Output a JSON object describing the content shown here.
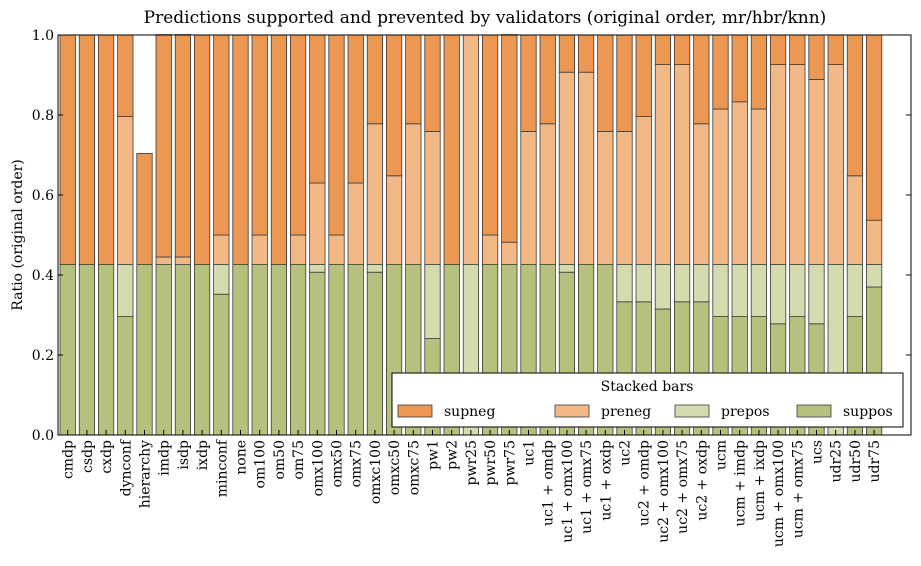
{
  "chart_data": {
    "type": "bar",
    "stacked": true,
    "title": "Predictions supported and prevented by validators (original order, mr/hbr/knn)",
    "xlabel": "",
    "ylabel": "Ratio (original order)",
    "ylim": [
      0,
      1.0
    ],
    "yticks": [
      "0.0",
      "0.2",
      "0.4",
      "0.6",
      "0.8",
      "1.0"
    ],
    "grid": false,
    "legend": {
      "title": "Stacked bars",
      "placement": "lower-right"
    },
    "categories": [
      "cmdp",
      "csdp",
      "cxdp",
      "dynconf",
      "hierarchy",
      "imdp",
      "isdp",
      "ixdp",
      "minconf",
      "none",
      "om100",
      "om50",
      "om75",
      "omx100",
      "omx50",
      "omx75",
      "omxc100",
      "omxc50",
      "omxc75",
      "pw1",
      "pw2",
      "pwr25",
      "pwr50",
      "pwr75",
      "uc1",
      "uc1 + omdp",
      "uc1 + omx100",
      "uc1 + omx75",
      "uc1 + oxdp",
      "uc2",
      "uc2 + omdp",
      "uc2 + omx100",
      "uc2 + omx75",
      "uc2 + oxdp",
      "ucm",
      "ucm + imdp",
      "ucm + ixdp",
      "ucm + omx100",
      "ucm + omx75",
      "ucs",
      "udr25",
      "udr50",
      "udr75"
    ],
    "series": [
      {
        "name": "suppos",
        "color": "#b4c27d",
        "values": [
          0.426,
          0.426,
          0.426,
          0.296,
          0.426,
          0.426,
          0.426,
          0.426,
          0.352,
          0.426,
          0.426,
          0.426,
          0.426,
          0.407,
          0.426,
          0.426,
          0.407,
          0.426,
          0.426,
          0.241,
          0.426,
          0.0,
          0.426,
          0.426,
          0.426,
          0.426,
          0.407,
          0.426,
          0.426,
          0.333,
          0.333,
          0.315,
          0.333,
          0.333,
          0.296,
          0.296,
          0.296,
          0.278,
          0.296,
          0.278,
          0.0,
          0.296,
          0.37
        ]
      },
      {
        "name": "prepos",
        "color": "#d3dbaf",
        "values": [
          0.0,
          0.0,
          0.0,
          0.13,
          0.0,
          0.0,
          0.0,
          0.0,
          0.074,
          0.0,
          0.0,
          0.0,
          0.0,
          0.019,
          0.0,
          0.0,
          0.019,
          0.0,
          0.0,
          0.185,
          0.0,
          0.426,
          0.0,
          0.0,
          0.0,
          0.0,
          0.019,
          0.0,
          0.0,
          0.093,
          0.093,
          0.111,
          0.093,
          0.093,
          0.13,
          0.13,
          0.13,
          0.148,
          0.13,
          0.148,
          0.426,
          0.13,
          0.056
        ]
      },
      {
        "name": "preneg",
        "color": "#f2b987",
        "values": [
          0.0,
          0.0,
          0.0,
          0.37,
          0.0,
          0.019,
          0.019,
          0.0,
          0.074,
          0.0,
          0.074,
          0.0,
          0.074,
          0.204,
          0.074,
          0.204,
          0.352,
          0.222,
          0.352,
          0.333,
          0.0,
          0.574,
          0.074,
          0.056,
          0.333,
          0.352,
          0.481,
          0.481,
          0.333,
          0.333,
          0.37,
          0.5,
          0.5,
          0.352,
          0.389,
          0.407,
          0.389,
          0.5,
          0.5,
          0.463,
          0.5,
          0.222,
          0.111
        ]
      },
      {
        "name": "supneg",
        "color": "#ec9852",
        "values": [
          0.574,
          0.574,
          0.574,
          0.204,
          0.278,
          0.556,
          0.556,
          0.574,
          0.5,
          0.574,
          0.5,
          0.574,
          0.5,
          0.37,
          0.5,
          0.37,
          0.222,
          0.352,
          0.222,
          0.241,
          0.574,
          0.0,
          0.5,
          0.519,
          0.241,
          0.222,
          0.093,
          0.093,
          0.241,
          0.241,
          0.204,
          0.074,
          0.074,
          0.222,
          0.185,
          0.167,
          0.185,
          0.074,
          0.074,
          0.111,
          0.074,
          0.352,
          0.463
        ]
      }
    ],
    "legend_order": [
      "supneg",
      "preneg",
      "prepos",
      "suppos"
    ]
  }
}
